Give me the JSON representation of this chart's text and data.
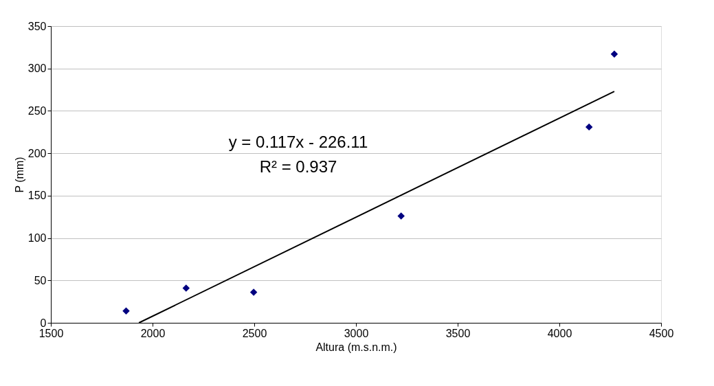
{
  "chart_data": {
    "type": "scatter",
    "xlabel": "Altura (m.s.n.m.)",
    "ylabel": "P (mm)",
    "xlim": [
      1500,
      4500
    ],
    "xticks": [
      1500,
      2000,
      2500,
      3000,
      3500,
      4000,
      4500
    ],
    "ylim": [
      0,
      350
    ],
    "yticks": [
      0,
      50,
      100,
      150,
      200,
      250,
      300,
      350
    ],
    "grid": "y",
    "marker": "diamond",
    "series": [
      {
        "color": "#000080",
        "x": [
          1870,
          2165,
          2497,
          3222,
          4146,
          4270
        ],
        "values": [
          14,
          41,
          36,
          126,
          231,
          317
        ]
      },
      {
        "type": "line",
        "marker": "none",
        "color": "#000000",
        "x": [
          1933,
          4270
        ],
        "values": [
          0,
          273
        ]
      }
    ],
    "annotations": [
      "y = 0.117x - 226.11",
      "R² = 0.937"
    ]
  }
}
